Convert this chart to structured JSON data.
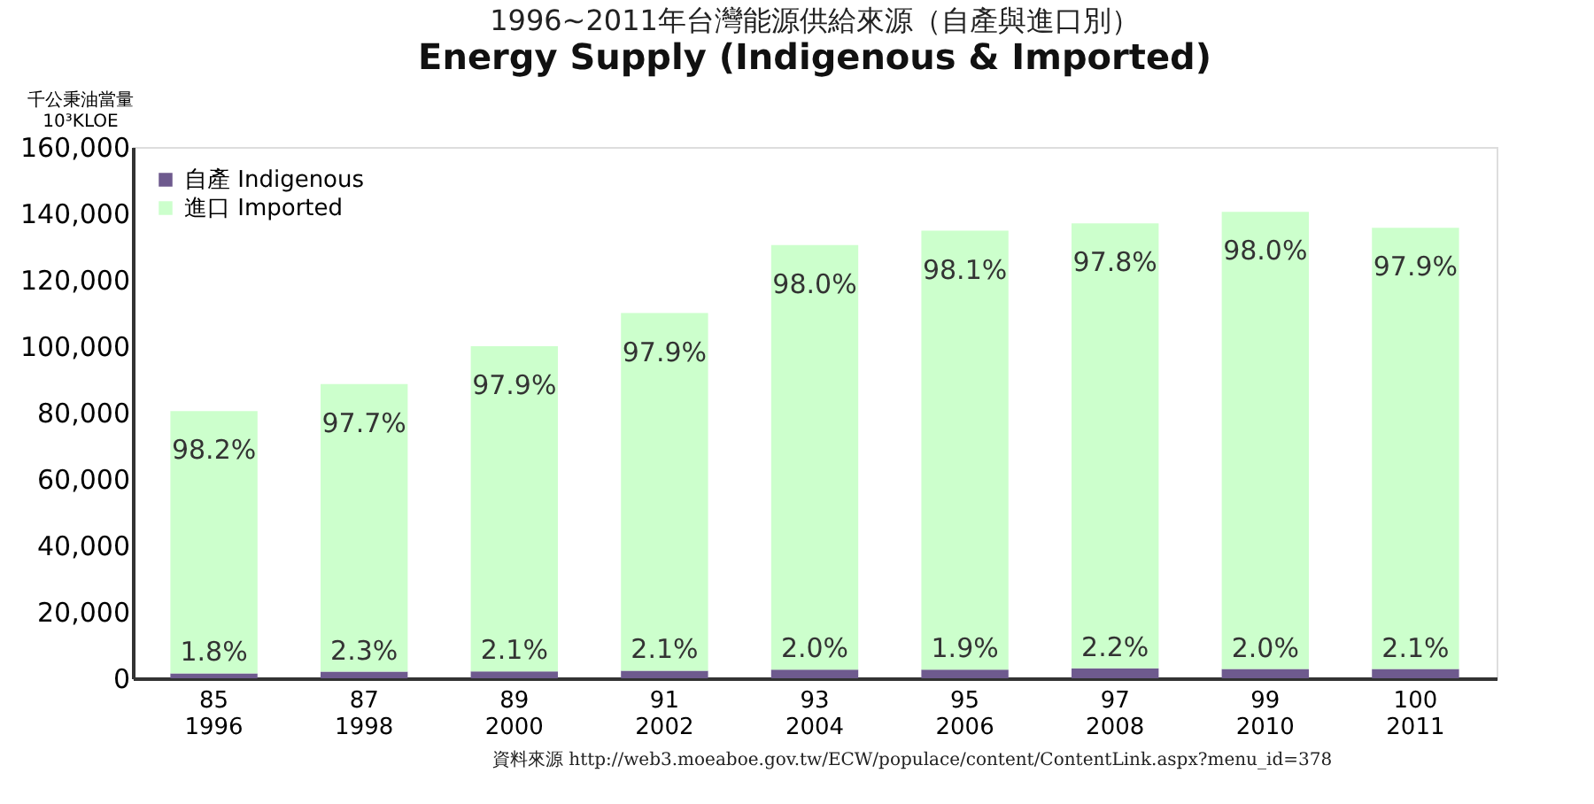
{
  "chart_data": {
    "type": "bar",
    "title": "1996~2011年台灣能源供給來源（自產與進口別）",
    "subtitle": "Energy Supply (Indigenous & Imported)",
    "ylabel": "千公秉油當量\n10³KLOE",
    "categories": [
      "85\n1996",
      "87\n1998",
      "89\n2000",
      "91\n2002",
      "93\n2004",
      "95\n2006",
      "97\n2008",
      "99\n2010",
      "100\n2011"
    ],
    "stacked": true,
    "series": [
      {
        "name": "自產 Indigenous",
        "color": "#6e5a8e",
        "values": [
          1500,
          2000,
          2100,
          2300,
          2600,
          2600,
          3000,
          2800,
          2800
        ]
      },
      {
        "name": "進口 Imported",
        "color": "#ccffcc",
        "values": [
          79000,
          86600,
          97900,
          107700,
          127900,
          132200,
          134000,
          137700,
          132900
        ]
      }
    ],
    "ylim": [
      0,
      160000
    ],
    "yticks": [
      0,
      {
        "value": 20000,
        "label": "20,000"
      },
      {
        "value": 40000,
        "label": "40,000"
      },
      {
        "value": 60000,
        "label": "60,000"
      },
      {
        "value": 80000,
        "label": "80,000"
      },
      {
        "value": 100000,
        "label": "100,000"
      },
      {
        "value": 120000,
        "label": "120,000"
      },
      {
        "value": 140000,
        "label": "140,000"
      },
      {
        "value": 160000,
        "label": "160,000"
      }
    ],
    "grid": false,
    "legend": "top left",
    "annotations": [
      {
        "text": "1.8%",
        "x": "85\n1996",
        "y": 1500
      },
      {
        "text": "2.3%",
        "x": "87\n1998",
        "y": 2000
      },
      {
        "text": "2.1%",
        "x": "89\n2000",
        "y": 2100
      },
      {
        "text": "2.1%",
        "x": "91\n2002",
        "y": 2300
      },
      {
        "text": "2.0%",
        "x": "93\n2004",
        "y": 2600
      },
      {
        "text": "1.9%",
        "x": "95\n2006",
        "y": 2600
      },
      {
        "text": "2.2%",
        "x": "97\n2008",
        "y": 3000
      },
      {
        "text": "2.0%",
        "x": "99\n2010",
        "y": 2800
      },
      {
        "text": "2.1%",
        "x": "100\n2011",
        "y": 2800
      },
      {
        "text": "98.2%",
        "x": "85\n1996",
        "y": 80500
      },
      {
        "text": "97.7%",
        "x": "87\n1998",
        "y": 88600
      },
      {
        "text": "97.9%",
        "x": "89\n2000",
        "y": 100000
      },
      {
        "text": "97.9%",
        "x": "91\n2002",
        "y": 110000
      },
      {
        "text": "98.0%",
        "x": "93\n2004",
        "y": 130500
      },
      {
        "text": "98.1%",
        "x": "95\n2006",
        "y": 134800
      },
      {
        "text": "97.8%",
        "x": "97\n2008",
        "y": 137000
      },
      {
        "text": "98.0%",
        "x": "99\n2010",
        "y": 140500
      },
      {
        "text": "97.9%",
        "x": "100\n2011",
        "y": 135700
      },
      "資料來源 http://web3.moeaboe.gov.tw/ECW/populace/content/ContentLink.aspx?menu_id=378"
    ]
  }
}
